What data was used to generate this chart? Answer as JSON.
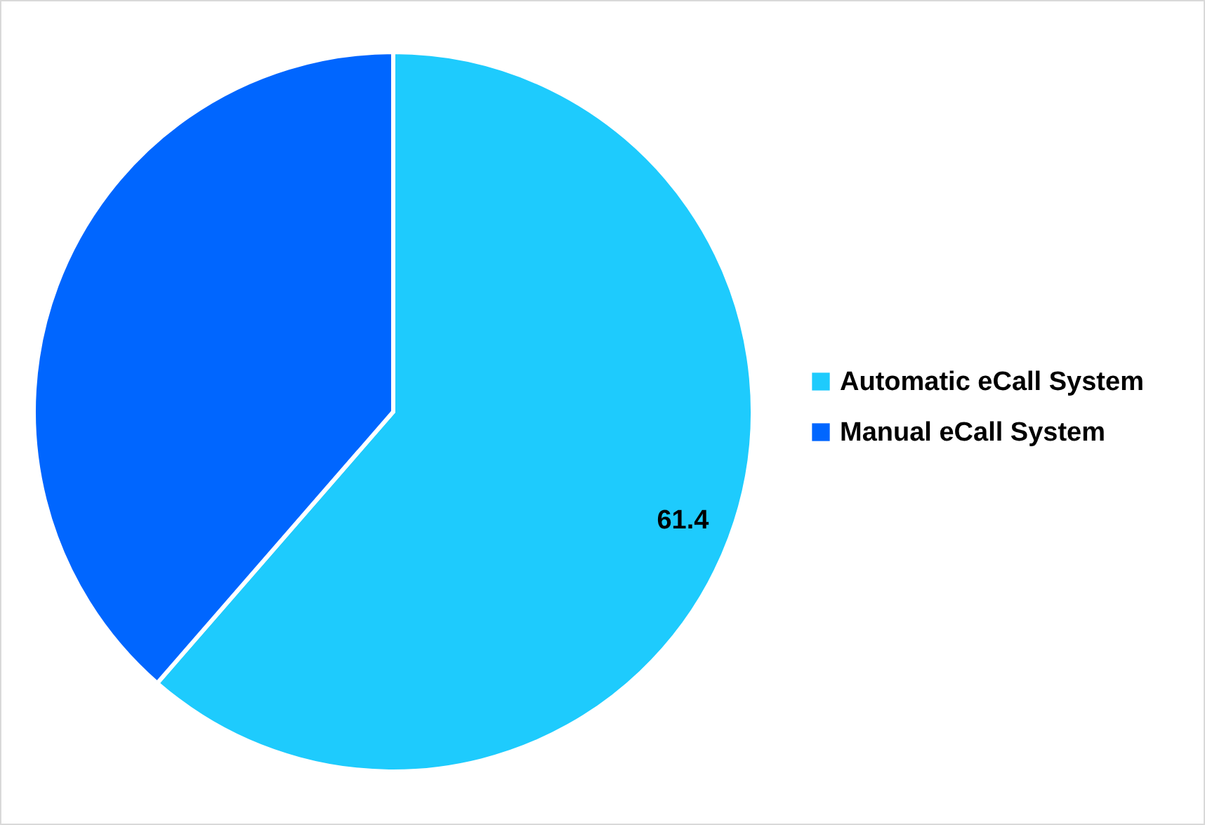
{
  "chart_data": {
    "type": "pie",
    "categories": [
      "Automatic eCall System",
      "Manual eCall System"
    ],
    "values": [
      61.4,
      38.6
    ],
    "colors": [
      "#1ecbfd",
      "#0066ff"
    ],
    "value_labels": [
      "61.4",
      null
    ],
    "legend": "right"
  }
}
